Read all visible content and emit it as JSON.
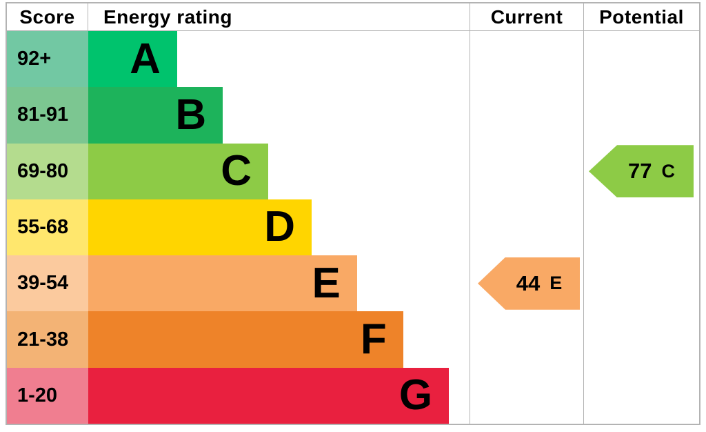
{
  "header": {
    "score_label": "Score",
    "energy_rating_label": "Energy rating",
    "current_label": "Current",
    "potential_label": "Potential"
  },
  "chart_data": {
    "type": "bar",
    "title": "Energy efficiency rating chart (EPC)",
    "columns": [
      "Score",
      "Energy rating",
      "Current",
      "Potential"
    ],
    "legend_position": "none",
    "grid": false,
    "bands": [
      {
        "letter": "A",
        "score_range": "92+",
        "bar_color": "#00c36d",
        "score_cell_color": "#72c8a3",
        "bar_width_pct": 23.3
      },
      {
        "letter": "B",
        "score_range": "81-91",
        "bar_color": "#1db35b",
        "score_cell_color": "#7cc691",
        "bar_width_pct": 35.3
      },
      {
        "letter": "C",
        "score_range": "69-80",
        "bar_color": "#8dcb46",
        "score_cell_color": "#b4dc8e",
        "bar_width_pct": 47.2
      },
      {
        "letter": "D",
        "score_range": "55-68",
        "bar_color": "#ffd500",
        "score_cell_color": "#ffe76d",
        "bar_width_pct": 58.6
      },
      {
        "letter": "E",
        "score_range": "39-54",
        "bar_color": "#f9a965",
        "score_cell_color": "#fbca9e",
        "bar_width_pct": 70.5
      },
      {
        "letter": "F",
        "score_range": "21-38",
        "bar_color": "#ee8329",
        "score_cell_color": "#f3b375",
        "bar_width_pct": 82.6
      },
      {
        "letter": "G",
        "score_range": "1-20",
        "bar_color": "#e9203f",
        "score_cell_color": "#f07e90",
        "bar_width_pct": 94.6
      }
    ],
    "current_rating": {
      "value": "44",
      "letter": "E",
      "color": "#f9a965"
    },
    "potential_rating": {
      "value": "77",
      "letter": "C",
      "color": "#8dcb46"
    }
  }
}
